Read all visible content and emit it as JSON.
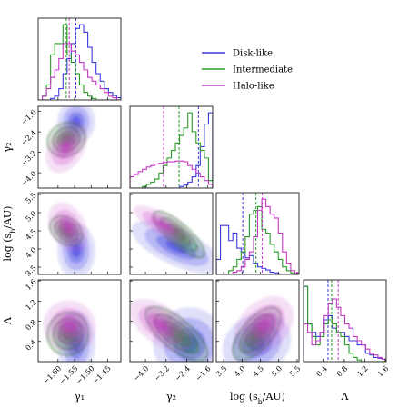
{
  "chart_data": {
    "type": "corner",
    "parameters": [
      {
        "key": "g1",
        "label": "γ₁",
        "range": [
          -1.66,
          -1.41
        ],
        "ticks": [
          -1.6,
          -1.55,
          -1.5,
          -1.45
        ],
        "tick_labels": [
          "−1.60",
          "−1.55",
          "−1.50",
          "−1.45"
        ]
      },
      {
        "key": "g2",
        "label": "γ₂",
        "range": [
          -4.6,
          -1.4
        ],
        "ticks": [
          -4.0,
          -3.2,
          -2.4,
          -1.6
        ],
        "tick_labels": [
          "−4.0",
          "−3.2",
          "−2.4",
          "−1.6"
        ]
      },
      {
        "key": "logs",
        "label": "log (s_b/AU)",
        "range": [
          3.3,
          5.55
        ],
        "ticks": [
          3.5,
          4.0,
          4.5,
          5.0,
          5.5
        ],
        "tick_labels": [
          "3.5",
          "4.0",
          "4.5",
          "5.0",
          "5.5"
        ]
      },
      {
        "key": "lam",
        "label": "Λ",
        "range": [
          0.0,
          1.62
        ],
        "ticks": [
          0.4,
          0.8,
          1.2,
          1.6
        ],
        "tick_labels": [
          "0.4",
          "0.8",
          "1.2",
          "1.6"
        ]
      }
    ],
    "series": [
      {
        "name": "Disk-like",
        "color": "#3a3ae0",
        "medians": {
          "g1": -1.546,
          "g2": -1.95,
          "logs": 4.02,
          "lam": 0.48
        },
        "hist": {
          "g1": [
            0,
            0,
            0,
            0.02,
            0.05,
            0.15,
            0.35,
            0.55,
            0.75,
            0.95,
            1.0,
            0.9,
            0.7,
            0.5,
            0.35,
            0.25,
            0.15,
            0.1,
            0.06,
            0.03
          ],
          "g2": [
            0,
            0,
            0,
            0,
            0,
            0,
            0,
            0,
            0,
            0,
            0,
            0,
            0.02,
            0.04,
            0.08,
            0.15,
            0.3,
            0.55,
            0.85,
            1.0
          ],
          "logs": [
            0.2,
            0.65,
            0.65,
            0.45,
            0.55,
            0.35,
            0.3,
            0.22,
            0.25,
            0.15,
            0.1,
            0.08,
            0.06,
            0.03,
            0.02,
            0,
            0,
            0,
            0,
            0
          ],
          "lam": [
            0.9,
            0.45,
            0.35,
            0.3,
            0.35,
            0.5,
            0.55,
            0.4,
            0.35,
            0.35,
            0.3,
            0.25,
            0.25,
            0.2,
            0.2,
            0.1,
            0.08,
            0.05,
            0.04,
            0.03
          ]
        },
        "density": [
          {
            "pair": [
              "g1",
              "g2"
            ],
            "cx": -1.545,
            "cy": -2.0,
            "sx": 0.03,
            "sy": 0.45,
            "rho": 0.0
          },
          {
            "pair": [
              "g1",
              "logs"
            ],
            "cx": -1.545,
            "cy": 3.95,
            "sx": 0.03,
            "sy": 0.4,
            "rho": 0.0
          },
          {
            "pair": [
              "g1",
              "lam"
            ],
            "cx": -1.545,
            "cy": 0.35,
            "sx": 0.03,
            "sy": 0.35,
            "rho": 0.0
          },
          {
            "pair": [
              "g2",
              "logs"
            ],
            "cx": -2.8,
            "cy": 4.05,
            "sx": 0.9,
            "sy": 0.4,
            "rho": -0.75
          },
          {
            "pair": [
              "g2",
              "lam"
            ],
            "cx": -2.3,
            "cy": 0.35,
            "sx": 0.7,
            "sy": 0.4,
            "rho": -0.3
          },
          {
            "pair": [
              "logs",
              "lam"
            ],
            "cx": 4.4,
            "cy": 0.35,
            "sx": 0.45,
            "sy": 0.35,
            "rho": 0.5
          }
        ]
      },
      {
        "name": "Intermediate",
        "color": "#2a9a2a",
        "medians": {
          "g1": -1.575,
          "g2": -2.7,
          "logs": 4.38,
          "lam": 0.55
        },
        "hist": {
          "g1": [
            0,
            0.05,
            0.2,
            0.6,
            0.75,
            0.75,
            1.0,
            0.6,
            0.5,
            0.35,
            0.2,
            0.1,
            0.05,
            0.02,
            0,
            0,
            0,
            0,
            0,
            0
          ],
          "g2": [
            0,
            0,
            0,
            0.02,
            0.05,
            0.08,
            0.12,
            0.2,
            0.3,
            0.4,
            0.5,
            0.6,
            0.7,
            0.8,
            1.0,
            0.75,
            0.6,
            0.5,
            0.4,
            0.1
          ],
          "logs": [
            0,
            0,
            0,
            0.05,
            0.1,
            0.2,
            0.3,
            0.5,
            0.8,
            0.85,
            0.9,
            0.6,
            0.55,
            0.4,
            0.3,
            0.2,
            0.1,
            0.05,
            0.02,
            0
          ],
          "lam": [
            0.9,
            0.45,
            0.3,
            0.2,
            0.3,
            0.45,
            0.5,
            0.45,
            0.35,
            0.3,
            0.2,
            0.1,
            0.05,
            0.02,
            0,
            0,
            0,
            0,
            0,
            0
          ]
        },
        "density": [
          {
            "pair": [
              "g1",
              "g2"
            ],
            "cx": -1.575,
            "cy": -2.7,
            "sx": 0.012,
            "sy": 0.5,
            "rho": -0.6
          },
          {
            "pair": [
              "g1",
              "logs"
            ],
            "cx": -1.575,
            "cy": 4.5,
            "sx": 0.012,
            "sy": 0.3,
            "rho": 0.5
          },
          {
            "pair": [
              "g1",
              "lam"
            ],
            "cx": -1.57,
            "cy": 0.55,
            "sx": 0.012,
            "sy": 0.3,
            "rho": 0.7
          },
          {
            "pair": [
              "g2",
              "logs"
            ],
            "cx": -2.7,
            "cy": 4.4,
            "sx": 0.5,
            "sy": 0.35,
            "rho": -0.9
          },
          {
            "pair": [
              "g2",
              "lam"
            ],
            "cx": -2.8,
            "cy": 0.55,
            "sx": 0.6,
            "sy": 0.3,
            "rho": -0.85
          },
          {
            "pair": [
              "logs",
              "lam"
            ],
            "cx": 4.4,
            "cy": 0.55,
            "sx": 0.3,
            "sy": 0.3,
            "rho": 0.85
          }
        ]
      },
      {
        "name": "Halo-like",
        "color": "#c43ac4",
        "medians": {
          "g1": -1.566,
          "g2": -3.3,
          "logs": 4.55,
          "lam": 0.68
        },
        "hist": {
          "g1": [
            0,
            0.05,
            0.15,
            0.3,
            0.4,
            0.55,
            0.75,
            0.75,
            0.65,
            0.6,
            0.5,
            0.4,
            0.3,
            0.25,
            0.2,
            0.15,
            0.1,
            0.05,
            0.03,
            0
          ],
          "g2": [
            0.15,
            0.18,
            0.22,
            0.25,
            0.28,
            0.3,
            0.32,
            0.33,
            0.34,
            0.35,
            0.35,
            0.36,
            0.36,
            0.35,
            0.3,
            0.25,
            0.2,
            0.15,
            0.1,
            0.05
          ],
          "logs": [
            0,
            0,
            0,
            0,
            0.03,
            0.05,
            0.1,
            0.2,
            0.3,
            0.5,
            0.85,
            1.0,
            0.9,
            0.8,
            0.75,
            0.55,
            0.3,
            0.15,
            0.05,
            0.02
          ],
          "lam": [
            0.45,
            0.35,
            0.2,
            0.25,
            0.35,
            0.55,
            0.7,
            0.75,
            0.65,
            0.55,
            0.45,
            0.4,
            0.3,
            0.25,
            0.2,
            0.15,
            0.1,
            0.08,
            0.05,
            0.03
          ]
        },
        "density": [
          {
            "pair": [
              "g1",
              "g2"
            ],
            "cx": -1.575,
            "cy": -3.0,
            "sx": 0.025,
            "sy": 0.6,
            "rho": -0.3
          },
          {
            "pair": [
              "g1",
              "logs"
            ],
            "cx": -1.57,
            "cy": 4.6,
            "sx": 0.025,
            "sy": 0.4,
            "rho": 0.3
          },
          {
            "pair": [
              "g1",
              "lam"
            ],
            "cx": -1.565,
            "cy": 0.7,
            "sx": 0.025,
            "sy": 0.35,
            "rho": 0.6
          },
          {
            "pair": [
              "g2",
              "logs"
            ],
            "cx": -3.3,
            "cy": 4.65,
            "sx": 0.6,
            "sy": 0.3,
            "rho": -0.85
          },
          {
            "pair": [
              "g2",
              "lam"
            ],
            "cx": -3.4,
            "cy": 0.72,
            "sx": 0.6,
            "sy": 0.3,
            "rho": -0.75
          },
          {
            "pair": [
              "logs",
              "lam"
            ],
            "cx": 4.6,
            "cy": 0.72,
            "sx": 0.35,
            "sy": 0.35,
            "rho": 0.7
          }
        ]
      }
    ],
    "legend": {
      "position": "upper-right"
    }
  }
}
